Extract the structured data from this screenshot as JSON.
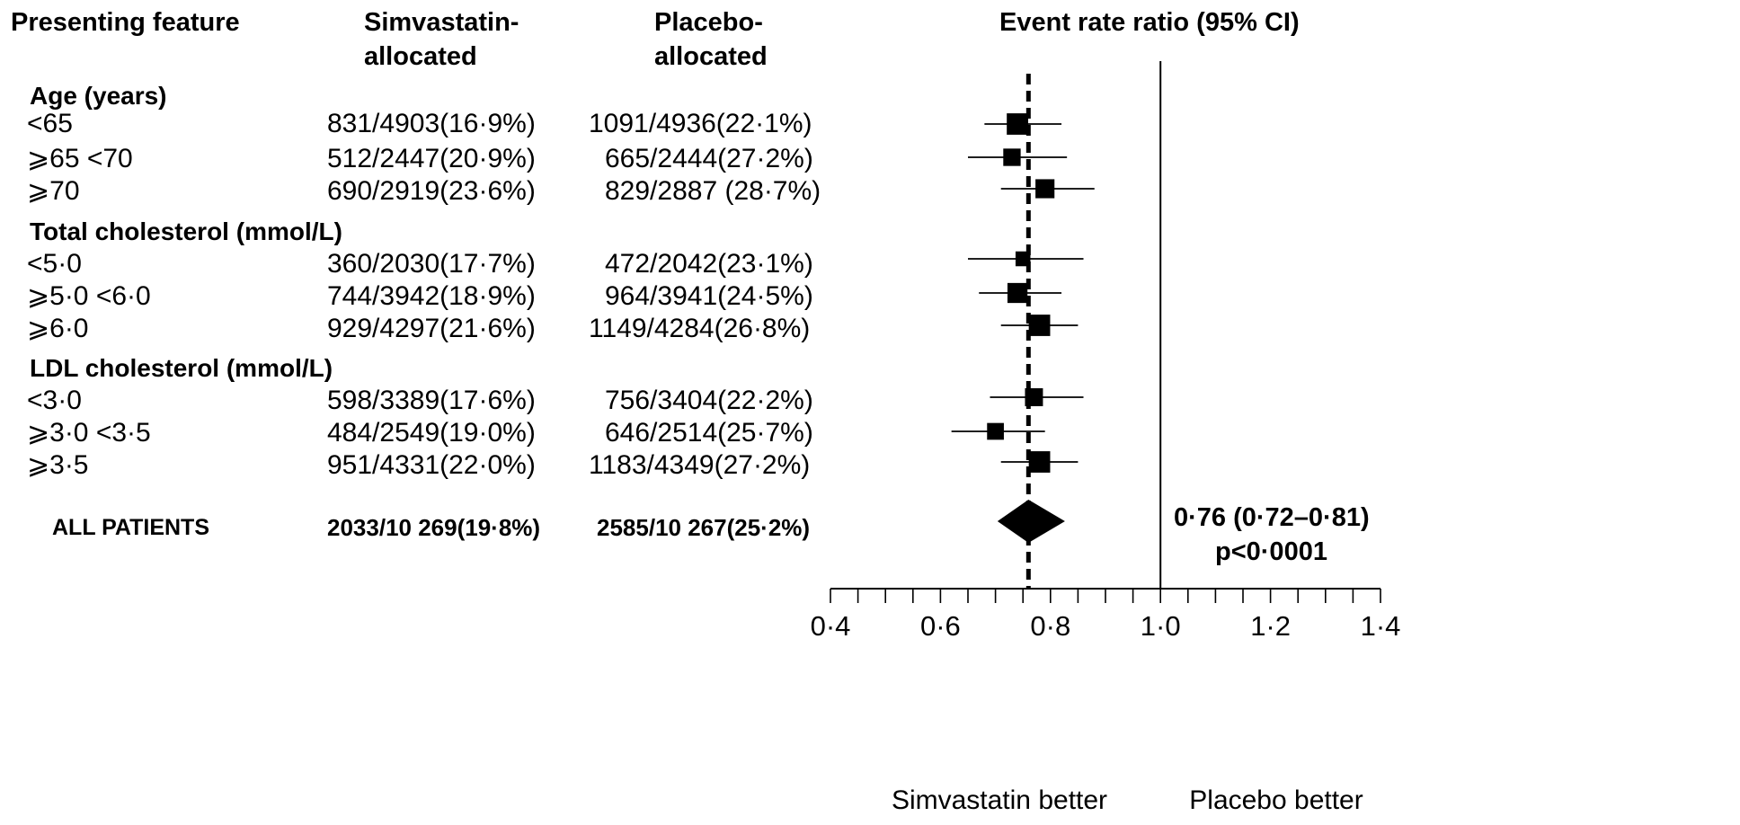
{
  "headers": {
    "feature": "Presenting feature",
    "simva": [
      "Simvastatin-",
      "allocated"
    ],
    "placebo": [
      "Placebo-",
      "allocated"
    ],
    "ratio": "Event rate ratio (95% CI)"
  },
  "groups": [
    {
      "title": "Age (years)",
      "rows": [
        {
          "label": "<65",
          "simva": "831/4903(16·9%)",
          "placebo": "1091/4936(22·1%)"
        },
        {
          "label": "⩾65 <70",
          "simva": "512/2447(20·9%)",
          "placebo": "665/2444(27·2%)"
        },
        {
          "label": "⩾70",
          "simva": "690/2919(23·6%)",
          "placebo": "829/2887 (28·7%)"
        }
      ]
    },
    {
      "title": "Total cholesterol (mmol/L)",
      "rows": [
        {
          "label": "<5·0",
          "simva": "360/2030(17·7%)",
          "placebo": "472/2042(23·1%)"
        },
        {
          "label": "⩾5·0 <6·0",
          "simva": "744/3942(18·9%)",
          "placebo": "964/3941(24·5%)"
        },
        {
          "label": "⩾6·0",
          "simva": "929/4297(21·6%)",
          "placebo": "1149/4284(26·8%)"
        }
      ]
    },
    {
      "title": "LDL cholesterol (mmol/L)",
      "rows": [
        {
          "label": "<3·0",
          "simva": "598/3389(17·6%)",
          "placebo": "756/3404(22·2%)"
        },
        {
          "label": "⩾3·0 <3·5",
          "simva": "484/2549(19·0%)",
          "placebo": "646/2514(25·7%)"
        },
        {
          "label": "⩾3·5",
          "simva": "951/4331(22·0%)",
          "placebo": "1183/4349(27·2%)"
        }
      ]
    }
  ],
  "overall": {
    "label": "ALL PATIENTS",
    "simva": "2033/10 269(19·8%)",
    "placebo": "2585/10 267(25·2%)",
    "estimate": "0·76 (0·72–0·81)",
    "p": "p<0·0001"
  },
  "chart_data": {
    "type": "forest",
    "x_axis": {
      "min": 0.4,
      "max": 1.4,
      "ticks": [
        0.4,
        0.6,
        0.8,
        1.0,
        1.2,
        1.4
      ],
      "tick_labels": [
        "0·4",
        "0·6",
        "0·8",
        "1·0",
        "1·2",
        "1·4"
      ],
      "minor_step": 0.1,
      "label_left": "Simvastatin better",
      "label_right": "Placebo better"
    },
    "reference_line": 1.0,
    "pooled_line": 0.76,
    "points": [
      {
        "label": "<65",
        "ratio": 0.74,
        "ci": [
          0.68,
          0.82
        ],
        "weight": 2.0
      },
      {
        "label": "⩾65 <70",
        "ratio": 0.73,
        "ci": [
          0.65,
          0.83
        ],
        "weight": 1.2
      },
      {
        "label": "⩾70",
        "ratio": 0.79,
        "ci": [
          0.71,
          0.88
        ],
        "weight": 1.5
      },
      {
        "label": "<5·0",
        "ratio": 0.75,
        "ci": [
          0.65,
          0.86
        ],
        "weight": 0.8
      },
      {
        "label": "⩾5·0 <6·0",
        "ratio": 0.74,
        "ci": [
          0.67,
          0.82
        ],
        "weight": 1.7
      },
      {
        "label": "⩾6·0",
        "ratio": 0.78,
        "ci": [
          0.71,
          0.85
        ],
        "weight": 2.0
      },
      {
        "label": "<3·0",
        "ratio": 0.77,
        "ci": [
          0.69,
          0.86
        ],
        "weight": 1.3
      },
      {
        "label": "⩾3·0 <3·5",
        "ratio": 0.7,
        "ci": [
          0.62,
          0.79
        ],
        "weight": 1.1
      },
      {
        "label": "⩾3·5",
        "ratio": 0.78,
        "ci": [
          0.71,
          0.85
        ],
        "weight": 2.0
      }
    ],
    "overall": {
      "ratio": 0.76,
      "ci": [
        0.72,
        0.81
      ]
    }
  }
}
